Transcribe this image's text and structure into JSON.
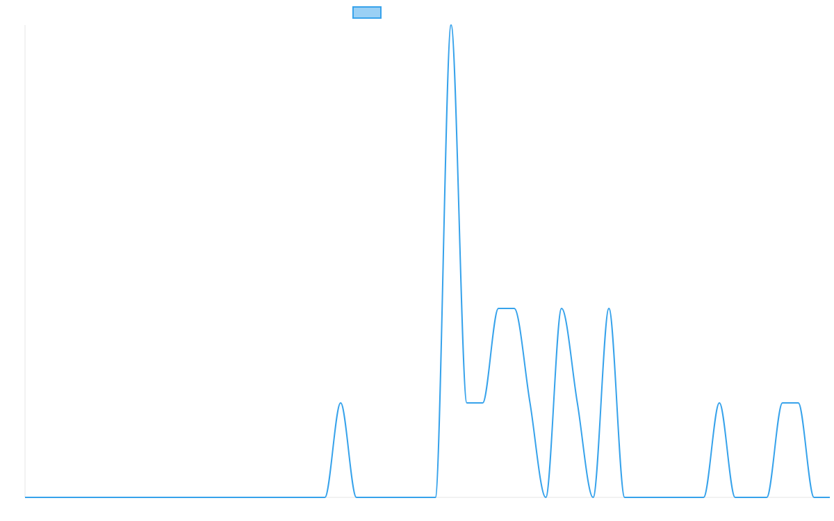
{
  "chart_data": {
    "type": "line",
    "title": "",
    "xlabel": "",
    "ylabel": "",
    "xlim": [
      0,
      51
    ],
    "ylim": [
      0,
      5
    ],
    "grid": false,
    "legend": {
      "position": "top-center",
      "entries": [
        ""
      ]
    },
    "x": [
      0,
      1,
      2,
      3,
      4,
      5,
      6,
      7,
      8,
      9,
      10,
      11,
      12,
      13,
      14,
      15,
      16,
      17,
      18,
      19,
      20,
      21,
      22,
      23,
      24,
      25,
      26,
      27,
      28,
      29,
      30,
      31,
      32,
      33,
      34,
      35,
      36,
      37,
      38,
      39,
      40,
      41,
      42,
      43,
      44,
      45,
      46,
      47,
      48,
      49,
      50,
      51
    ],
    "series": [
      {
        "name": "",
        "color": "#36a2eb",
        "fill": "#9ad0f5",
        "values": [
          0,
          0,
          0,
          0,
          0,
          0,
          0,
          0,
          0,
          0,
          0,
          0,
          0,
          0,
          0,
          0,
          0,
          0,
          0,
          0,
          1,
          0,
          0,
          0,
          0,
          0,
          0,
          5,
          1,
          1,
          2,
          2,
          1,
          0,
          2,
          1,
          0,
          2,
          0,
          0,
          0,
          0,
          0,
          0,
          1,
          0,
          0,
          0,
          1,
          1,
          0,
          0
        ]
      }
    ]
  }
}
